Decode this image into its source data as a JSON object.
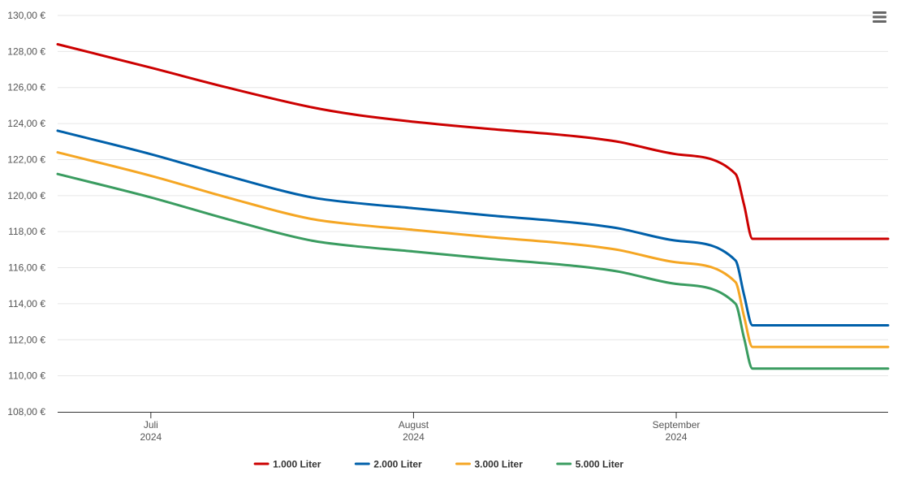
{
  "chart_data": {
    "type": "line",
    "title": "",
    "xlabel": "",
    "ylabel": "",
    "ylim": [
      108,
      130
    ],
    "y_ticks": [
      "108,00 €",
      "110,00 €",
      "112,00 €",
      "114,00 €",
      "116,00 €",
      "118,00 €",
      "120,00 €",
      "122,00 €",
      "124,00 €",
      "126,00 €",
      "128,00 €",
      "130,00 €"
    ],
    "x_range": [
      "2024-06-20",
      "2024-09-26"
    ],
    "x_ticks": [
      {
        "date": "2024-07-01",
        "label": "Juli",
        "year": "2024"
      },
      {
        "date": "2024-08-01",
        "label": "August",
        "year": "2024"
      },
      {
        "date": "2024-09-01",
        "label": "September",
        "year": "2024"
      }
    ],
    "grid": true,
    "legend_position": "bottom",
    "x": [
      "2024-06-20",
      "2024-07-01",
      "2024-07-10",
      "2024-07-20",
      "2024-07-25",
      "2024-08-01",
      "2024-08-10",
      "2024-08-20",
      "2024-08-25",
      "2024-09-01",
      "2024-09-08",
      "2024-09-09",
      "2024-09-10",
      "2024-09-26"
    ],
    "series": [
      {
        "name": "1.000 Liter",
        "color": "#cc0000",
        "values": [
          128.4,
          127.1,
          126.0,
          124.9,
          124.5,
          124.1,
          123.7,
          123.3,
          123.0,
          122.3,
          121.2,
          119.5,
          117.6,
          117.6
        ]
      },
      {
        "name": "2.000 Liter",
        "color": "#0060aa",
        "values": [
          123.6,
          122.3,
          121.1,
          119.9,
          119.6,
          119.3,
          118.9,
          118.5,
          118.2,
          117.5,
          116.4,
          114.5,
          112.8,
          112.8
        ]
      },
      {
        "name": "3.000 Liter",
        "color": "#f5a623",
        "values": [
          122.4,
          121.1,
          119.9,
          118.7,
          118.4,
          118.1,
          117.7,
          117.3,
          117.0,
          116.3,
          115.2,
          113.3,
          111.6,
          111.6
        ]
      },
      {
        "name": "5.000 Liter",
        "color": "#3a9c60",
        "values": [
          121.2,
          119.9,
          118.7,
          117.5,
          117.2,
          116.9,
          116.5,
          116.1,
          115.8,
          115.1,
          114.0,
          112.1,
          110.4,
          110.4
        ]
      }
    ]
  }
}
